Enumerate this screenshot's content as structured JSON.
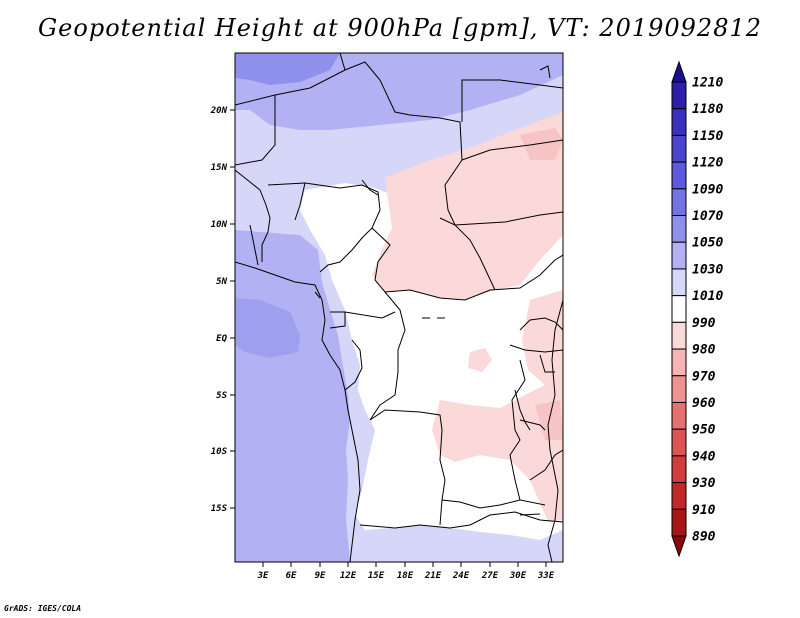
{
  "title": "Geopotential Height at 900hPa [gpm], VT: 2019092812",
  "credit": "GrADS: IGES/COLA",
  "map": {
    "latitude_labels": [
      "20N",
      "15N",
      "10N",
      "5N",
      "EQ",
      "5S",
      "10S",
      "15S"
    ],
    "longitude_labels": [
      "3E",
      "6E",
      "9E",
      "12E",
      "15E",
      "18E",
      "21E",
      "24E",
      "27E",
      "30E",
      "33E"
    ]
  },
  "colorbar": {
    "levels": [
      "1210",
      "1180",
      "1150",
      "1120",
      "1090",
      "1070",
      "1050",
      "1030",
      "1010",
      "990",
      "980",
      "970",
      "960",
      "950",
      "940",
      "930",
      "910",
      "890"
    ],
    "colors": [
      "#1c0e8e",
      "#2a1fa6",
      "#3a30bc",
      "#4b44cc",
      "#5d5adb",
      "#7473e4",
      "#8f8fec",
      "#b1b1f3",
      "#d6d6f8",
      "#ffffff",
      "#fbd9d9",
      "#f6b4b4",
      "#ef9292",
      "#e77171",
      "#dd5454",
      "#d13c3c",
      "#c22828",
      "#a81616",
      "#8a0a0a"
    ]
  }
}
